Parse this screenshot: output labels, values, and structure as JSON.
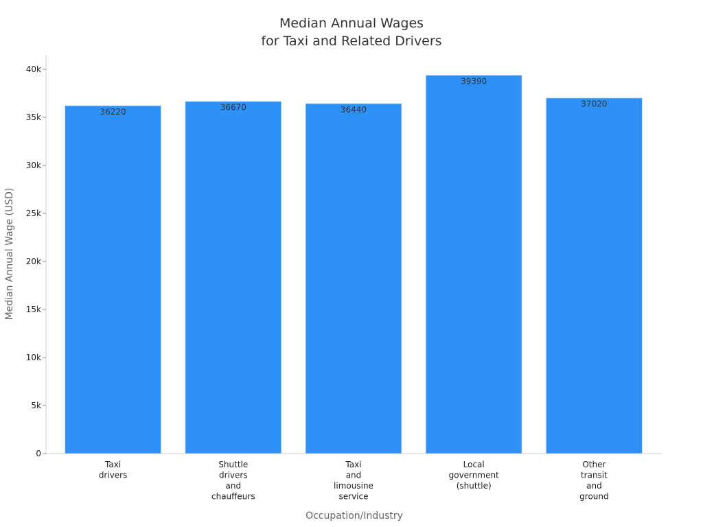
{
  "chart_data": {
    "type": "bar",
    "title": [
      "Median Annual Wages",
      "for Taxi and Related Drivers"
    ],
    "xlabel": "Occupation/Industry",
    "ylabel": "Median Annual Wage (USD)",
    "categories": [
      [
        "Taxi",
        "drivers"
      ],
      [
        "Shuttle",
        "drivers",
        "and",
        "chauffeurs"
      ],
      [
        "Taxi",
        "and",
        "limousine",
        "service"
      ],
      [
        "Local",
        "government",
        "(shuttle)"
      ],
      [
        "Other",
        "transit",
        "and",
        "ground"
      ]
    ],
    "values": [
      36220,
      36670,
      36440,
      39390,
      37020
    ],
    "data_labels": [
      "36220",
      "36670",
      "36440",
      "39390",
      "37020"
    ],
    "ylim": [
      0,
      41500
    ],
    "yticks": [
      0,
      5000,
      10000,
      15000,
      20000,
      25000,
      30000,
      35000,
      40000
    ],
    "ytick_labels": [
      "0",
      "5k",
      "10k",
      "15k",
      "20k",
      "25k",
      "30k",
      "35k",
      "40k"
    ],
    "grid": false,
    "bar_color": "#2e91f8"
  }
}
